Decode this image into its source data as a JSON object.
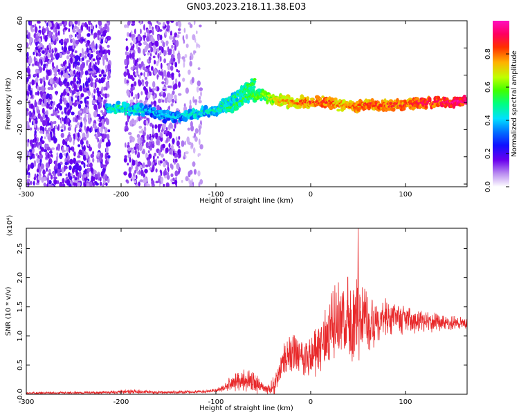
{
  "title": "GN03.2023.218.11.38.E03",
  "chart_data": [
    {
      "type": "heatmap",
      "id": "spectrogram",
      "xlabel": "Height of straight line (km)",
      "ylabel": "Frequency (Hz)",
      "xlim": [
        -300,
        165
      ],
      "ylim": [
        -62,
        60
      ],
      "xticks": [
        -300,
        -200,
        -100,
        0,
        100
      ],
      "yticks": [
        60,
        40,
        20,
        0,
        -20,
        -40,
        -60
      ],
      "colorbar": {
        "label": "Normalized spectral amplitude",
        "range": [
          0,
          1
        ],
        "ticks": [
          "0.0",
          "0.2",
          "0.4",
          "0.6",
          "0.8"
        ],
        "tick_values": [
          0.0,
          0.2,
          0.4,
          0.6,
          0.8
        ]
      },
      "ridge": [
        {
          "x": -215,
          "y": -5,
          "a": 0.45
        },
        {
          "x": -200,
          "y": -4,
          "a": 0.5
        },
        {
          "x": -185,
          "y": -5,
          "a": 0.45
        },
        {
          "x": -170,
          "y": -7,
          "a": 0.4
        },
        {
          "x": -155,
          "y": -10,
          "a": 0.4
        },
        {
          "x": -140,
          "y": -10,
          "a": 0.4
        },
        {
          "x": -125,
          "y": -9,
          "a": 0.45
        },
        {
          "x": -110,
          "y": -7,
          "a": 0.45
        },
        {
          "x": -95,
          "y": -5,
          "a": 0.5
        },
        {
          "x": -80,
          "y": -2,
          "a": 0.55
        },
        {
          "x": -70,
          "y": 2,
          "a": 0.55
        },
        {
          "x": -60,
          "y": 5,
          "a": 0.55
        },
        {
          "x": -50,
          "y": 5,
          "a": 0.6
        },
        {
          "x": -40,
          "y": 3,
          "a": 0.7
        },
        {
          "x": -30,
          "y": 1,
          "a": 0.75
        },
        {
          "x": -15,
          "y": 0,
          "a": 0.8
        },
        {
          "x": 0,
          "y": 0,
          "a": 0.85
        },
        {
          "x": 15,
          "y": 1,
          "a": 0.85
        },
        {
          "x": 30,
          "y": -2,
          "a": 0.8
        },
        {
          "x": 45,
          "y": -3,
          "a": 0.8
        },
        {
          "x": 60,
          "y": -2,
          "a": 0.85
        },
        {
          "x": 75,
          "y": -2,
          "a": 0.85
        },
        {
          "x": 90,
          "y": -2,
          "a": 0.85
        },
        {
          "x": 105,
          "y": -1,
          "a": 0.85
        },
        {
          "x": 120,
          "y": 0,
          "a": 0.9
        },
        {
          "x": 135,
          "y": 0,
          "a": 0.9
        },
        {
          "x": 150,
          "y": 1,
          "a": 0.95
        },
        {
          "x": 165,
          "y": 2,
          "a": 0.95
        }
      ],
      "branch": [
        {
          "x": -95,
          "y": -2,
          "a": 0.5
        },
        {
          "x": -85,
          "y": 2,
          "a": 0.5
        },
        {
          "x": -75,
          "y": 6,
          "a": 0.5
        },
        {
          "x": -65,
          "y": 12,
          "a": 0.55
        },
        {
          "x": -58,
          "y": 16,
          "a": 0.55
        }
      ]
    },
    {
      "type": "line",
      "id": "snr",
      "xlabel": "Height of straight line (km)",
      "ylabel": "SNR (10 * v/v)",
      "yscale_label": "(x10⁴)",
      "xlim": [
        -300,
        165
      ],
      "ylim": [
        0,
        2.85
      ],
      "xticks": [
        -300,
        -200,
        -100,
        0,
        100
      ],
      "yticks": [
        0.0,
        0.5,
        1.0,
        1.5,
        2.0,
        2.5
      ],
      "color": "#e8292b",
      "envelope": [
        {
          "x": -300,
          "base": 0.02,
          "amp": 0.02
        },
        {
          "x": -210,
          "base": 0.03,
          "amp": 0.03
        },
        {
          "x": -195,
          "base": 0.05,
          "amp": 0.05
        },
        {
          "x": -160,
          "base": 0.03,
          "amp": 0.03
        },
        {
          "x": -120,
          "base": 0.04,
          "amp": 0.03
        },
        {
          "x": -100,
          "base": 0.06,
          "amp": 0.04
        },
        {
          "x": -90,
          "base": 0.12,
          "amp": 0.08
        },
        {
          "x": -80,
          "base": 0.22,
          "amp": 0.2
        },
        {
          "x": -70,
          "base": 0.25,
          "amp": 0.22
        },
        {
          "x": -58,
          "base": 0.2,
          "amp": 0.2
        },
        {
          "x": -48,
          "base": 0.08,
          "amp": 0.08
        },
        {
          "x": -38,
          "base": 0.15,
          "amp": 0.2
        },
        {
          "x": -28,
          "base": 0.6,
          "amp": 0.4
        },
        {
          "x": -15,
          "base": 0.75,
          "amp": 0.35
        },
        {
          "x": 0,
          "base": 0.6,
          "amp": 0.5
        },
        {
          "x": 10,
          "base": 0.85,
          "amp": 0.55
        },
        {
          "x": 25,
          "base": 1.2,
          "amp": 0.75
        },
        {
          "x": 40,
          "base": 1.25,
          "amp": 0.8
        },
        {
          "x": 50,
          "base": 1.25,
          "amp": 0.9
        },
        {
          "x": 65,
          "base": 1.3,
          "amp": 0.6
        },
        {
          "x": 80,
          "base": 1.3,
          "amp": 0.4
        },
        {
          "x": 100,
          "base": 1.28,
          "amp": 0.3
        },
        {
          "x": 125,
          "base": 1.25,
          "amp": 0.2
        },
        {
          "x": 145,
          "base": 1.22,
          "amp": 0.15
        },
        {
          "x": 165,
          "base": 1.22,
          "amp": 0.1
        }
      ],
      "peak": {
        "x": 50,
        "y": 2.85
      }
    }
  ]
}
